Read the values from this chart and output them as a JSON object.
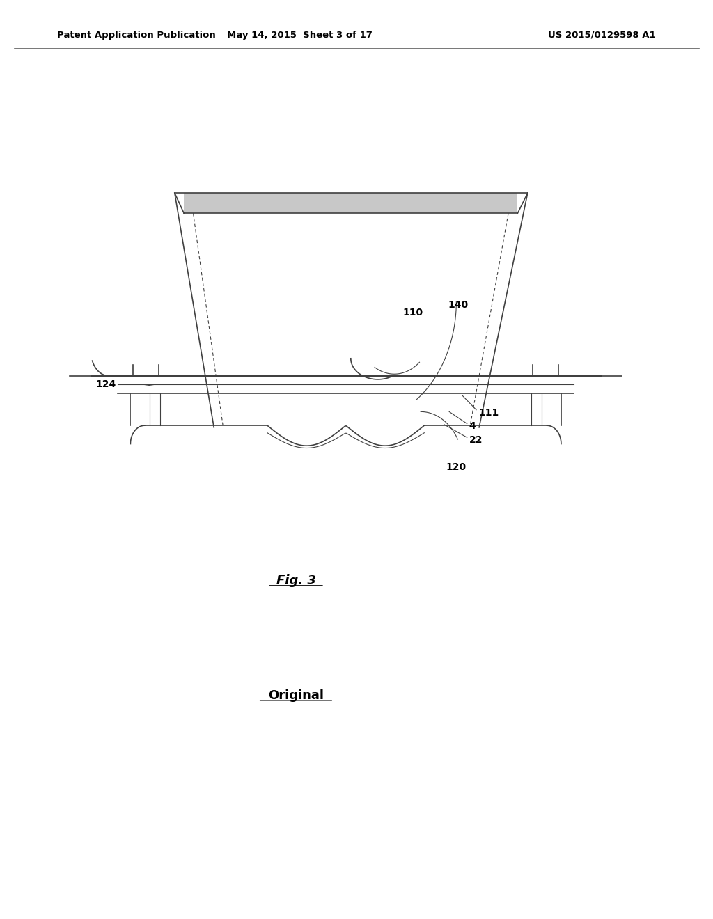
{
  "bg_color": "#ffffff",
  "line_color": "#404040",
  "text_color": "#000000",
  "header_left": "Patent Application Publication",
  "header_mid": "May 14, 2015  Sheet 3 of 17",
  "header_right": "US 2015/0129598 A1",
  "fig_label": "Fig. 3",
  "watermark": "Original"
}
